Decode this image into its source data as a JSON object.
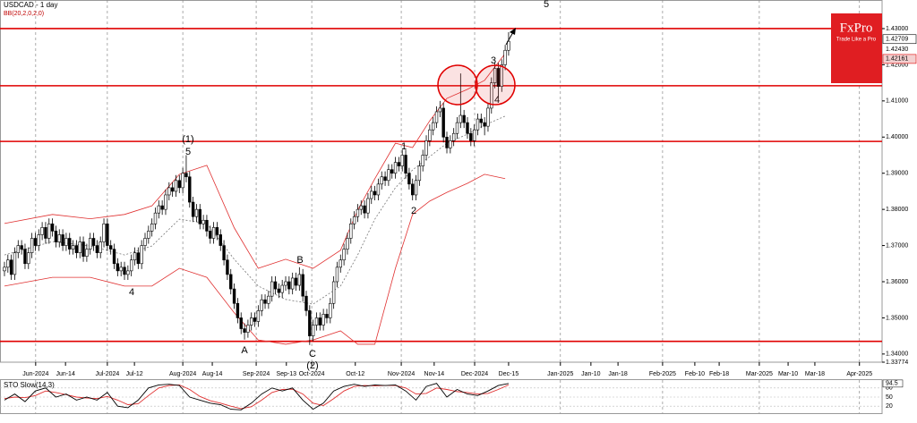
{
  "chart_data": {
    "type": "candlestick",
    "title": "USDCAD - 1 day",
    "subtitle": "BB(20,2,0,2,0)",
    "logo": {
      "name": "FxPro",
      "tagline": "Trade Like a Pro"
    },
    "xlim": [
      -1.3,
      255.9
    ],
    "xticks": [
      {
        "value": 9.1,
        "label": "Jun-2024"
      },
      {
        "value": 17.8,
        "label": "Jun-14"
      },
      {
        "value": 30,
        "label": "Jul-2024"
      },
      {
        "value": 37.9,
        "label": "Jul-12"
      },
      {
        "value": 52,
        "label": "Aug-2024"
      },
      {
        "value": 60.6,
        "label": "Aug-14"
      },
      {
        "value": 73.4,
        "label": "Sep-2024"
      },
      {
        "value": 82.2,
        "label": "Sep-13"
      },
      {
        "value": 89.6,
        "label": "Oct-2024"
      },
      {
        "value": 102.3,
        "label": "Oct-12"
      },
      {
        "value": 115.7,
        "label": "Nov-2024"
      },
      {
        "value": 125.3,
        "label": "Nov-14"
      },
      {
        "value": 137.1,
        "label": "Dec-2024"
      },
      {
        "value": 147,
        "label": "Dec-15"
      },
      {
        "value": 162.1,
        "label": "Jan-2025"
      },
      {
        "value": 171,
        "label": "Jan-10"
      },
      {
        "value": 178.9,
        "label": "Jan-18"
      },
      {
        "value": 191.9,
        "label": "Feb-2025"
      },
      {
        "value": 201.3,
        "label": "Feb-10"
      },
      {
        "value": 208.4,
        "label": "Feb-18"
      },
      {
        "value": 220.1,
        "label": "Mar-2025"
      },
      {
        "value": 228.5,
        "label": "Mar-10"
      },
      {
        "value": 236.3,
        "label": "Mar-18"
      },
      {
        "value": 249.3,
        "label": "Apr-2025"
      }
    ],
    "ylim": [
      1.33774,
      1.43791
    ],
    "yticks": [
      {
        "value": 1.33774,
        "label": "1.33774"
      },
      {
        "value": 1.34,
        "label": "1.34000"
      },
      {
        "value": 1.35,
        "label": "1.35000"
      },
      {
        "value": 1.36,
        "label": "1.36000"
      },
      {
        "value": 1.37,
        "label": "1.37000"
      },
      {
        "value": 1.38,
        "label": "1.38000"
      },
      {
        "value": 1.39,
        "label": "1.39000"
      },
      {
        "value": 1.4,
        "label": "1.40000"
      },
      {
        "value": 1.41,
        "label": "1.41000"
      },
      {
        "value": 1.42,
        "label": "1.42000"
      },
      {
        "value": 1.43,
        "label": "1.43000"
      }
    ],
    "price_labels": [
      {
        "value": 1.42709,
        "label": "1.42709"
      },
      {
        "value": 1.4243,
        "label": "1.42430"
      },
      {
        "value": 1.42161,
        "label": "1.42161"
      }
    ],
    "levels": [
      1.43,
      1.4142,
      1.3988,
      1.3435
    ],
    "level_color": "#e00000",
    "open": [
      1.363,
      1.364,
      1.366,
      1.362,
      1.368,
      1.37,
      1.369,
      1.365,
      1.368,
      1.372,
      1.37,
      1.373,
      1.375,
      1.372,
      1.376,
      1.374,
      1.371,
      1.373,
      1.37,
      1.372,
      1.369,
      1.37,
      1.368,
      1.371,
      1.367,
      1.369,
      1.372,
      1.37,
      1.368,
      1.371,
      1.376,
      1.37,
      1.369,
      1.365,
      1.363,
      1.364,
      1.362,
      1.363,
      1.366,
      1.368,
      1.365,
      1.37,
      1.372,
      1.374,
      1.376,
      1.379,
      1.381,
      1.38,
      1.384,
      1.386,
      1.385,
      1.388,
      1.386,
      1.39,
      1.389,
      1.382,
      1.378,
      1.38,
      1.376,
      1.377,
      1.374,
      1.372,
      1.375,
      1.373,
      1.37,
      1.366,
      1.362,
      1.358,
      1.354,
      1.35,
      1.347,
      1.346,
      1.348,
      1.35,
      1.349,
      1.352,
      1.355,
      1.354,
      1.356,
      1.36,
      1.358,
      1.357,
      1.359,
      1.36,
      1.358,
      1.361,
      1.359,
      1.362,
      1.356,
      1.352,
      1.345,
      1.348,
      1.35,
      1.348,
      1.351,
      1.35,
      1.354,
      1.36,
      1.364,
      1.366,
      1.369,
      1.372,
      1.376,
      1.378,
      1.38,
      1.381,
      1.379,
      1.383,
      1.385,
      1.384,
      1.387,
      1.389,
      1.388,
      1.391,
      1.39,
      1.393,
      1.392,
      1.395,
      1.39,
      1.387,
      1.384,
      1.388,
      1.392,
      1.395,
      1.399,
      1.402,
      1.404,
      1.407,
      1.408,
      1.4,
      1.397,
      1.399,
      1.401,
      1.404,
      1.406,
      1.404,
      1.401,
      1.399,
      1.402,
      1.405,
      1.404,
      1.403,
      1.408,
      1.415,
      1.419,
      1.414,
      1.42,
      1.424
    ],
    "high": [
      1.3655,
      1.3675,
      1.3675,
      1.3695,
      1.3715,
      1.3715,
      1.3705,
      1.3695,
      1.3735,
      1.3735,
      1.3745,
      1.3765,
      1.3765,
      1.3775,
      1.3775,
      1.3755,
      1.3745,
      1.3745,
      1.3735,
      1.3735,
      1.3715,
      1.3715,
      1.3725,
      1.3725,
      1.3705,
      1.3735,
      1.3735,
      1.3715,
      1.3725,
      1.3775,
      1.3775,
      1.3715,
      1.3705,
      1.3665,
      1.3655,
      1.3655,
      1.3645,
      1.3675,
      1.3695,
      1.3695,
      1.3715,
      1.3735,
      1.3755,
      1.3775,
      1.3805,
      1.3825,
      1.3825,
      1.3855,
      1.3875,
      1.3875,
      1.3895,
      1.3895,
      1.3915,
      1.395,
      1.3905,
      1.3835,
      1.3815,
      1.3815,
      1.3785,
      1.3785,
      1.3755,
      1.3765,
      1.3765,
      1.3745,
      1.3715,
      1.3675,
      1.3635,
      1.3595,
      1.3555,
      1.3515,
      1.3485,
      1.3495,
      1.3515,
      1.3515,
      1.3535,
      1.3565,
      1.3565,
      1.3575,
      1.3615,
      1.3615,
      1.3595,
      1.3605,
      1.3615,
      1.3615,
      1.3625,
      1.3625,
      1.364,
      1.3635,
      1.3575,
      1.3535,
      1.3495,
      1.3515,
      1.3515,
      1.3525,
      1.3525,
      1.3555,
      1.3615,
      1.3655,
      1.3675,
      1.3705,
      1.3735,
      1.3775,
      1.3795,
      1.3815,
      1.3825,
      1.3825,
      1.3845,
      1.3865,
      1.3865,
      1.3885,
      1.3905,
      1.3905,
      1.3925,
      1.3925,
      1.3945,
      1.3945,
      1.3965,
      1.3965,
      1.3915,
      1.3885,
      1.3895,
      1.3935,
      1.3965,
      1.4005,
      1.4035,
      1.4055,
      1.4085,
      1.41,
      1.4095,
      1.4015,
      1.4005,
      1.4025,
      1.4055,
      1.4176,
      1.4075,
      1.4055,
      1.4025,
      1.4035,
      1.4065,
      1.4065,
      1.4055,
      1.4095,
      1.4165,
      1.4205,
      1.4205,
      1.4215,
      1.4255,
      1.429
    ],
    "low": [
      1.3615,
      1.3625,
      1.3605,
      1.3605,
      1.3665,
      1.3675,
      1.3635,
      1.3635,
      1.3665,
      1.3685,
      1.3685,
      1.3715,
      1.3705,
      1.3705,
      1.3725,
      1.3695,
      1.3695,
      1.3685,
      1.3685,
      1.3675,
      1.3675,
      1.3665,
      1.3665,
      1.3655,
      1.3655,
      1.3675,
      1.3685,
      1.3665,
      1.3665,
      1.3695,
      1.3685,
      1.3675,
      1.3635,
      1.3615,
      1.3615,
      1.3605,
      1.3605,
      1.3615,
      1.3645,
      1.3635,
      1.3635,
      1.3685,
      1.3705,
      1.3725,
      1.3745,
      1.3775,
      1.3785,
      1.3785,
      1.3825,
      1.3835,
      1.3835,
      1.3845,
      1.3845,
      1.3875,
      1.3805,
      1.3765,
      1.3765,
      1.3745,
      1.3745,
      1.3725,
      1.3705,
      1.3705,
      1.3715,
      1.3685,
      1.3645,
      1.3605,
      1.3565,
      1.3525,
      1.3485,
      1.3455,
      1.344,
      1.3445,
      1.3465,
      1.3475,
      1.3475,
      1.3505,
      1.3525,
      1.3525,
      1.3545,
      1.3565,
      1.3555,
      1.3555,
      1.3575,
      1.3565,
      1.3565,
      1.3575,
      1.3575,
      1.3545,
      1.3505,
      1.3425,
      1.3435,
      1.3465,
      1.3465,
      1.3465,
      1.3485,
      1.3485,
      1.3525,
      1.3585,
      1.3625,
      1.3645,
      1.3675,
      1.3705,
      1.3745,
      1.3765,
      1.3785,
      1.3775,
      1.3775,
      1.3815,
      1.3825,
      1.3825,
      1.3855,
      1.3865,
      1.3865,
      1.3885,
      1.3885,
      1.3905,
      1.3905,
      1.3885,
      1.3855,
      1.3825,
      1.3825,
      1.3865,
      1.3905,
      1.3935,
      1.3975,
      1.4005,
      1.4025,
      1.4055,
      1.3985,
      1.3955,
      1.3955,
      1.3975,
      1.3995,
      1.4025,
      1.4025,
      1.3995,
      1.3975,
      1.3975,
      1.4005,
      1.4025,
      1.4005,
      1.4015,
      1.4065,
      1.4135,
      1.411,
      1.4125,
      1.4185,
      1.4225
    ],
    "close": [
      1.364,
      1.366,
      1.362,
      1.368,
      1.37,
      1.369,
      1.365,
      1.368,
      1.372,
      1.37,
      1.373,
      1.375,
      1.372,
      1.376,
      1.374,
      1.371,
      1.373,
      1.37,
      1.372,
      1.369,
      1.37,
      1.368,
      1.371,
      1.367,
      1.369,
      1.372,
      1.37,
      1.368,
      1.371,
      1.376,
      1.37,
      1.369,
      1.365,
      1.363,
      1.364,
      1.362,
      1.363,
      1.366,
      1.368,
      1.365,
      1.37,
      1.372,
      1.374,
      1.376,
      1.379,
      1.381,
      1.38,
      1.384,
      1.386,
      1.385,
      1.388,
      1.386,
      1.39,
      1.389,
      1.382,
      1.378,
      1.38,
      1.376,
      1.377,
      1.374,
      1.372,
      1.375,
      1.373,
      1.37,
      1.366,
      1.362,
      1.358,
      1.354,
      1.35,
      1.347,
      1.346,
      1.348,
      1.35,
      1.349,
      1.352,
      1.355,
      1.354,
      1.356,
      1.36,
      1.358,
      1.357,
      1.359,
      1.36,
      1.358,
      1.361,
      1.359,
      1.362,
      1.356,
      1.352,
      1.345,
      1.348,
      1.35,
      1.348,
      1.351,
      1.35,
      1.354,
      1.36,
      1.364,
      1.366,
      1.369,
      1.372,
      1.376,
      1.378,
      1.38,
      1.381,
      1.379,
      1.383,
      1.385,
      1.384,
      1.387,
      1.389,
      1.388,
      1.391,
      1.39,
      1.393,
      1.392,
      1.395,
      1.39,
      1.387,
      1.384,
      1.388,
      1.392,
      1.395,
      1.399,
      1.402,
      1.404,
      1.407,
      1.408,
      1.4,
      1.397,
      1.399,
      1.401,
      1.404,
      1.406,
      1.404,
      1.401,
      1.399,
      1.402,
      1.405,
      1.404,
      1.403,
      1.408,
      1.415,
      1.419,
      1.414,
      1.42,
      1.424,
      1.4265
    ],
    "bollinger": {
      "color": "#e03030",
      "middle_color": "#777777",
      "x": [
        0,
        14,
        25,
        35,
        43,
        51,
        59,
        67,
        74,
        82,
        90,
        98,
        103,
        108,
        114,
        119,
        124,
        129,
        135,
        140,
        146
      ],
      "upper": [
        1.3761,
        1.3786,
        1.3774,
        1.3786,
        1.381,
        1.3897,
        1.3922,
        1.3749,
        1.3637,
        1.3662,
        1.3637,
        1.3687,
        1.3798,
        1.3885,
        1.3983,
        1.3971,
        1.4045,
        1.4107,
        1.4132,
        1.4157,
        1.4231
      ],
      "middle": [
        1.3674,
        1.3711,
        1.3699,
        1.3674,
        1.3699,
        1.3773,
        1.3761,
        1.3662,
        1.3588,
        1.3551,
        1.3538,
        1.3588,
        1.3674,
        1.3773,
        1.386,
        1.3909,
        1.3946,
        1.3983,
        1.4008,
        1.4033,
        1.4058
      ],
      "lower": [
        1.3588,
        1.3612,
        1.3612,
        1.3588,
        1.3588,
        1.3637,
        1.3612,
        1.3514,
        1.3439,
        1.3427,
        1.3439,
        1.3464,
        1.3427,
        1.3427,
        1.3637,
        1.3786,
        1.3823,
        1.3847,
        1.3872,
        1.3897,
        1.3885
      ]
    },
    "annotations": [
      "5",
      "(1)",
      "5",
      "4",
      "A",
      "B",
      "C",
      "(2)",
      "1",
      "2",
      "3",
      "4"
    ],
    "stochastic": {
      "label": "STO Slow(14,3)",
      "ylim": [
        0,
        100
      ],
      "yticks": [
        80,
        50,
        20
      ],
      "k_color": "#000000",
      "d_color": "#e03030",
      "x": [
        0,
        3,
        6,
        9,
        12,
        15,
        18,
        21,
        24,
        27,
        30,
        33,
        36,
        39,
        42,
        45,
        48,
        51,
        54,
        57,
        60,
        63,
        66,
        69,
        72,
        75,
        78,
        81,
        84,
        87,
        90,
        93,
        96,
        99,
        102,
        105,
        108,
        111,
        114,
        117,
        120,
        123,
        126,
        129,
        132,
        135,
        138,
        141,
        144,
        147
      ],
      "k": [
        40,
        60,
        35,
        70,
        80,
        50,
        60,
        40,
        50,
        40,
        65,
        20,
        15,
        40,
        80,
        90,
        92,
        88,
        50,
        40,
        30,
        25,
        10,
        8,
        30,
        60,
        80,
        70,
        80,
        40,
        10,
        30,
        70,
        85,
        92,
        85,
        90,
        88,
        90,
        70,
        40,
        85,
        95,
        50,
        75,
        60,
        55,
        70,
        88,
        94.5
      ],
      "d": [
        45,
        50,
        48,
        55,
        70,
        65,
        58,
        50,
        47,
        45,
        52,
        40,
        25,
        28,
        55,
        80,
        88,
        90,
        75,
        52,
        38,
        30,
        20,
        12,
        18,
        40,
        65,
        75,
        76,
        60,
        30,
        22,
        45,
        70,
        85,
        88,
        87,
        88,
        88,
        80,
        60,
        62,
        80,
        75,
        68,
        65,
        60,
        62,
        75,
        90
      ]
    }
  }
}
